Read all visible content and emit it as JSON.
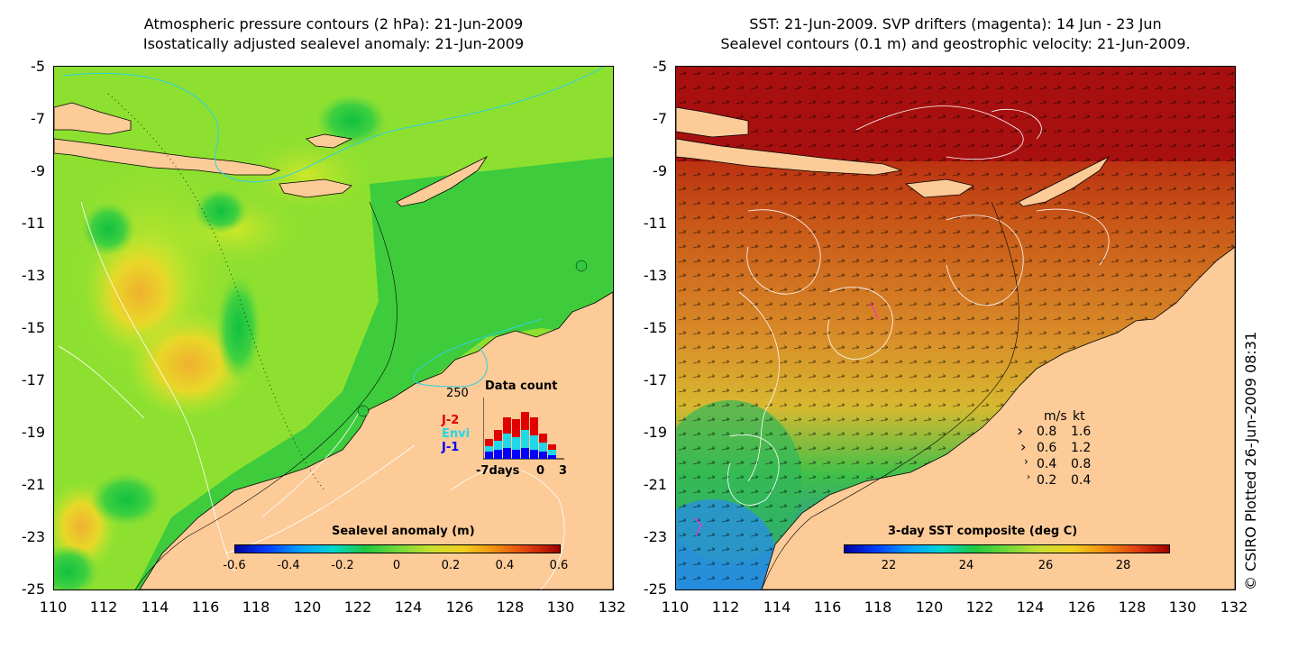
{
  "left_panel": {
    "title_line1": "Atmospheric pressure contours (2 hPa): 21-Jun-2009",
    "title_line2": "Isostatically adjusted sealevel anomaly: 21-Jun-2009",
    "colorbar_label": "Sealevel anomaly (m)",
    "colorbar_ticks": [
      "-0.6",
      "-0.4",
      "-0.2",
      "0",
      "0.2",
      "0.4",
      "0.6"
    ],
    "data_count": {
      "title": "Data count",
      "ymax_label": "250",
      "xlabel_left": "-7days",
      "xlabel_mid": "0",
      "xlabel_right": "3",
      "legend": [
        {
          "label": "J-2",
          "color": "#e00000"
        },
        {
          "label": "Envi",
          "color": "#20d8e8"
        },
        {
          "label": "J-1",
          "color": "#0000ff"
        }
      ]
    }
  },
  "right_panel": {
    "title_line1": "SST: 21-Jun-2009. SVP drifters (magenta): 14 Jun - 23 Jun",
    "title_line2": "Sealevel contours (0.1 m) and geostrophic velocity: 21-Jun-2009.",
    "colorbar_label": "3-day SST composite (deg C)",
    "colorbar_ticks": [
      "22",
      "24",
      "26",
      "28"
    ],
    "velocity_legend": {
      "header_ms": "m/s",
      "header_kt": "kt",
      "rows": [
        {
          "ms": "0.8",
          "kt": "1.6"
        },
        {
          "ms": "0.6",
          "kt": "1.2"
        },
        {
          "ms": "0.4",
          "kt": "0.8"
        },
        {
          "ms": "0.2",
          "kt": "0.4"
        }
      ]
    }
  },
  "axes": {
    "y_ticks": [
      "-5",
      "-7",
      "-9",
      "-11",
      "-13",
      "-15",
      "-17",
      "-19",
      "-21",
      "-23",
      "-25"
    ],
    "x_ticks": [
      "110",
      "112",
      "114",
      "116",
      "118",
      "120",
      "122",
      "124",
      "126",
      "128",
      "130",
      "132"
    ]
  },
  "credit": "© CSIRO Plotted 26-Jun-2009 08:31",
  "colors": {
    "land": "#fccb98",
    "sla_background": "#8ee030",
    "sst_background": "#d4661c"
  }
}
